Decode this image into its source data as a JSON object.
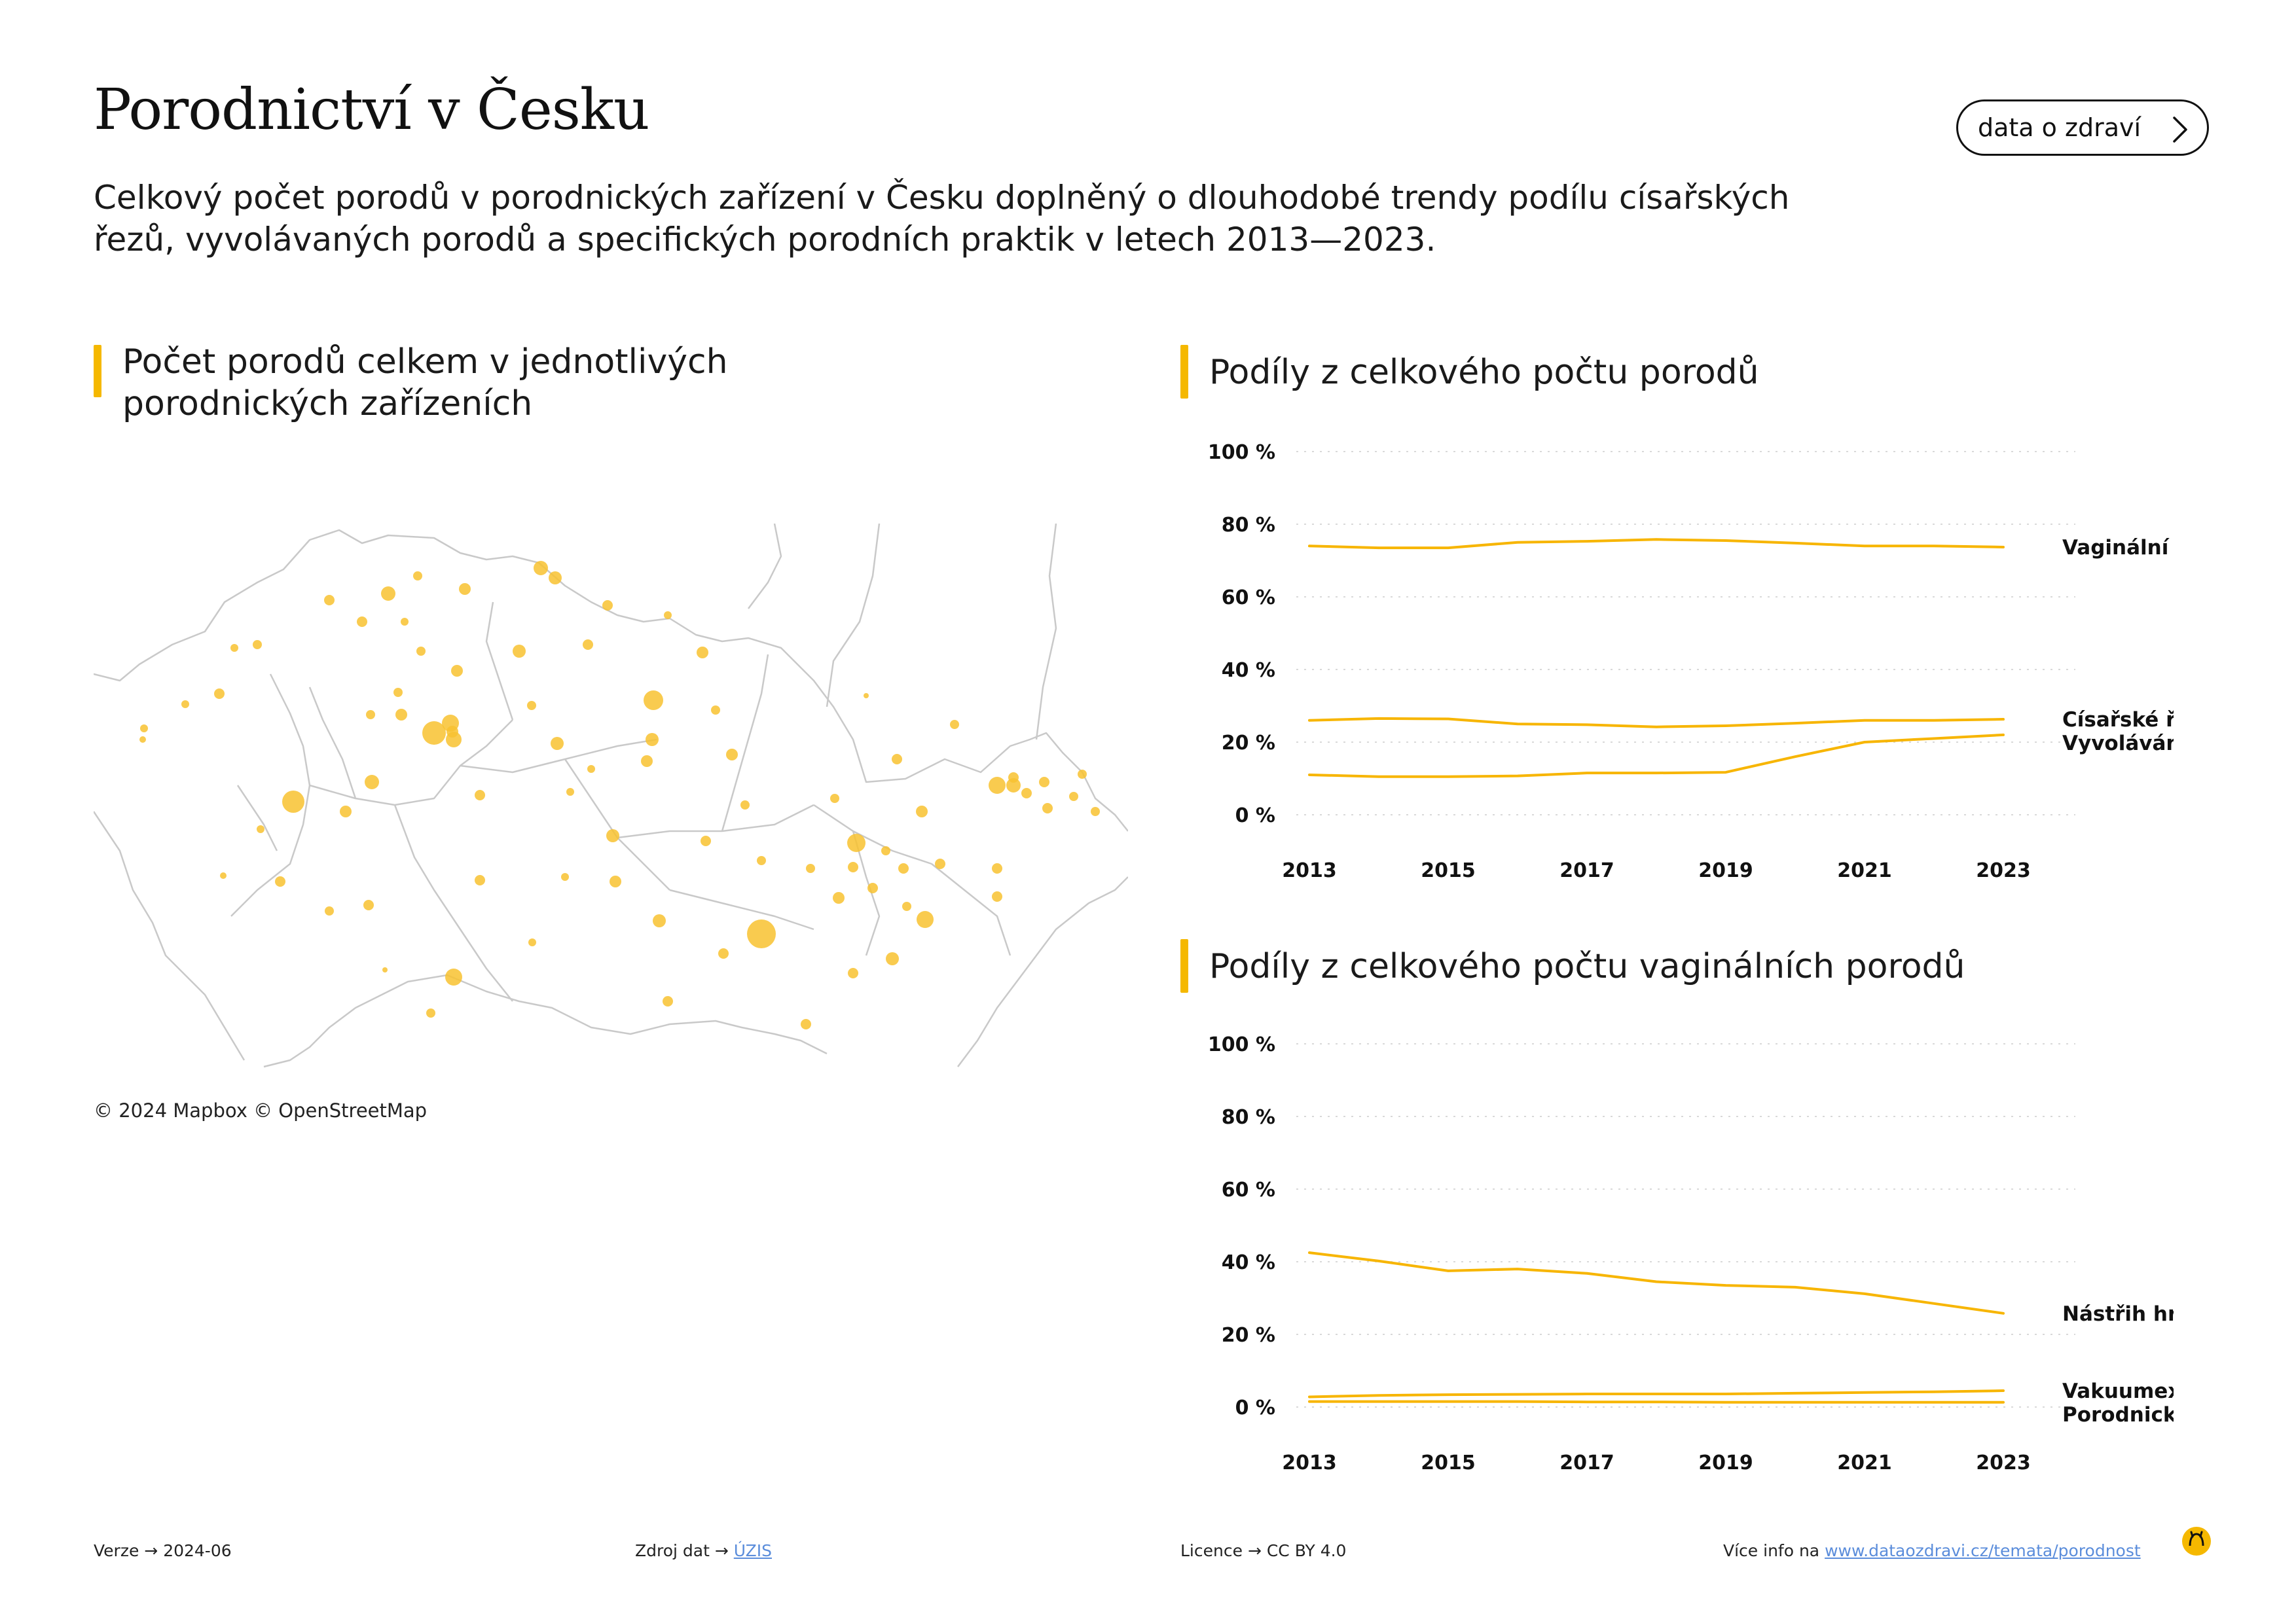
{
  "header": {
    "title": "Porodnictví v Česku",
    "subtitle": "Celkový počet porodů v porodnických zařízení v Česku doplněný o dlouhodobé trendy podílu císařských řezů, vyvolávaných porodů a specifických porodních praktik v letech 2013—2023.",
    "brand_button": "data o zdraví"
  },
  "map_section": {
    "title_line1": "Počet porodů celkem v jednotlivých",
    "title_line2": "porodnických zařízeních",
    "copyright": "© 2024 Mapbox © OpenStreetMap"
  },
  "colors": {
    "accent": "#f5b800",
    "line": "#f7b500",
    "grid": "#d9d9d9",
    "link": "#5b8ddb"
  },
  "chart_data": [
    {
      "type": "line",
      "title": "Podíly z celkového počtu porodů",
      "x_ticks": [
        2013,
        2015,
        2017,
        2019,
        2021,
        2023
      ],
      "y_ticks": [
        "100 %",
        "80 %",
        "60 %",
        "40 %",
        "20 %",
        "0 %"
      ],
      "ylim": [
        0,
        100
      ],
      "xlim": [
        2013,
        2023
      ],
      "grid": "horizontal dotted",
      "x": [
        2013,
        2014,
        2015,
        2016,
        2017,
        2018,
        2019,
        2020,
        2021,
        2022,
        2023
      ],
      "series": [
        {
          "name": "Vaginální porody",
          "values": [
            74,
            73.5,
            73.5,
            75,
            75.3,
            75.8,
            75.5,
            74.8,
            74,
            74,
            73.7
          ]
        },
        {
          "name": "Císařské řezy",
          "values": [
            26,
            26.5,
            26.4,
            25,
            24.8,
            24.2,
            24.5,
            25.2,
            26,
            26,
            26.3
          ]
        },
        {
          "name": "Vyvolávání porodu",
          "values": [
            11,
            10.5,
            10.5,
            10.7,
            11.5,
            11.5,
            11.7,
            16,
            20,
            21,
            22
          ]
        }
      ]
    },
    {
      "type": "line",
      "title": "Podíly z celkového počtu vaginálních porodů",
      "x_ticks": [
        2013,
        2015,
        2017,
        2019,
        2021,
        2023
      ],
      "y_ticks": [
        "100 %",
        "80 %",
        "60 %",
        "40 %",
        "20 %",
        "0 %"
      ],
      "ylim": [
        0,
        100
      ],
      "xlim": [
        2013,
        2023
      ],
      "grid": "horizontal dotted",
      "x": [
        2013,
        2014,
        2015,
        2016,
        2017,
        2018,
        2019,
        2020,
        2021,
        2022,
        2023
      ],
      "series": [
        {
          "name": "Nástřih hráze",
          "values": [
            42.5,
            40.2,
            37.5,
            38,
            36.8,
            34.5,
            33.5,
            33,
            31.2,
            28.5,
            25.8
          ]
        },
        {
          "name": "Vakuumextraktor",
          "values": [
            2.8,
            3.2,
            3.4,
            3.5,
            3.6,
            3.6,
            3.6,
            3.8,
            4,
            4.2,
            4.5
          ]
        },
        {
          "name": "Porodnické kleště",
          "values": [
            1.5,
            1.5,
            1.5,
            1.5,
            1.4,
            1.4,
            1.3,
            1.3,
            1.3,
            1.3,
            1.3
          ]
        }
      ]
    }
  ],
  "footer": {
    "version_label": "Verze",
    "version_value": "2024-06",
    "source_label": "Zdroj dat",
    "source_value": "ÚZIS",
    "license_label": "Licence",
    "license_value": "CC BY 4.0",
    "more_label": "Více info na",
    "more_link": "www.dataozdravi.cz/temata/porodnost"
  }
}
